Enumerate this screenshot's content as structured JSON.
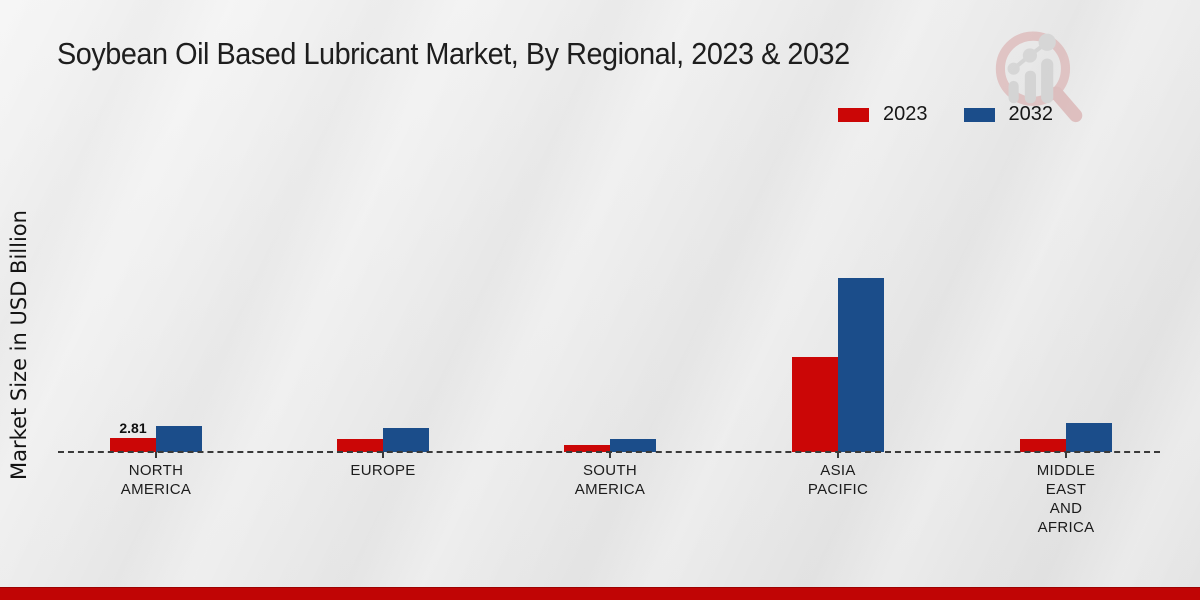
{
  "page_title": "Soybean Oil Based Lubricant Market, By Regional, 2023 & 2032",
  "icons": {
    "watermark": "bar-chart-magnifier-logo"
  },
  "chart_data": {
    "type": "bar",
    "title": "Soybean Oil Based Lubricant Market, By Regional, 2023 & 2032",
    "xlabel": "",
    "ylabel": "Market Size in USD Billion",
    "categories": [
      "NORTH AMERICA",
      "EUROPE",
      "SOUTH AMERICA",
      "ASIA PACIFIC",
      "MIDDLE EAST AND AFRICA"
    ],
    "category_lines": [
      [
        "NORTH",
        "AMERICA"
      ],
      [
        "EUROPE"
      ],
      [
        "SOUTH",
        "AMERICA"
      ],
      [
        "ASIA",
        "PACIFIC"
      ],
      [
        "MIDDLE",
        "EAST",
        "AND",
        "AFRICA"
      ]
    ],
    "series": [
      {
        "name": "2023",
        "color": "#cb0606",
        "values": [
          2.81,
          2.6,
          1.3,
          18.9,
          2.6
        ]
      },
      {
        "name": "2032",
        "color": "#1b4d8a",
        "values": [
          5.2,
          4.8,
          2.6,
          34.7,
          5.8
        ]
      }
    ],
    "value_labels": [
      {
        "series": "2023",
        "category": "NORTH AMERICA",
        "text": "2.81"
      }
    ],
    "ylim": [
      0,
      40
    ],
    "grid": false,
    "baseline_style": "dashed-zero-line",
    "legend_position": "top-right"
  },
  "footer": {
    "stripe_color": "#c00505"
  }
}
